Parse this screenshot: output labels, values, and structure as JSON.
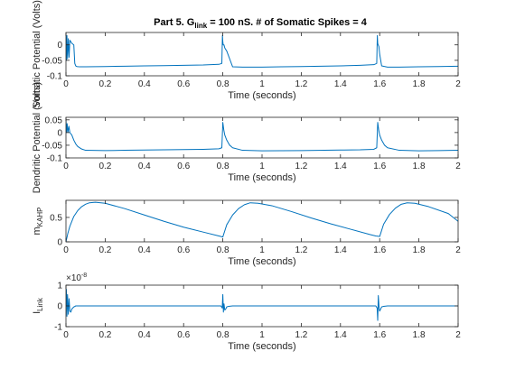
{
  "figure": {
    "title_main": "Part 5. G",
    "title_sub": "link",
    "title_rest": " = 100 nS. # of Somatic Spikes = 4"
  },
  "colors": {
    "trace": "#0072BD",
    "axis": "#262626"
  },
  "chart_data": [
    {
      "type": "line",
      "id": "somatic",
      "xlabel": "Time (seconds)",
      "ylabel": "Somatic Potential (Volts)",
      "xlim": [
        0,
        2
      ],
      "ylim": [
        -0.1,
        0.04
      ],
      "xticks": [
        0,
        0.2,
        0.4,
        0.6,
        0.8,
        1,
        1.2,
        1.4,
        1.6,
        1.8,
        2
      ],
      "xticklabels": [
        "0",
        "0.2",
        "0.4",
        "0.6",
        "0.8",
        "1",
        "1.2",
        "1.4",
        "1.6",
        "1.8",
        "2"
      ],
      "yticks": [
        -0.1,
        -0.05,
        0
      ],
      "yticklabels": [
        "-0.1",
        "-0.05",
        "0"
      ],
      "series": [
        {
          "x": [
            0,
            0.002,
            0.005,
            0.008,
            0.012,
            0.016,
            0.02,
            0.03,
            0.04,
            0.045,
            0.05,
            0.055,
            0.07,
            0.1,
            0.2,
            0.3,
            0.4,
            0.5,
            0.6,
            0.7,
            0.78,
            0.795,
            0.798,
            0.8,
            0.802,
            0.806,
            0.81,
            0.82,
            0.85,
            0.9,
            1.0,
            1.1,
            1.2,
            1.3,
            1.4,
            1.5,
            1.57,
            1.585,
            1.588,
            1.59,
            1.592,
            1.596,
            1.6,
            1.61,
            1.64,
            1.7,
            1.8,
            1.9,
            2.0
          ],
          "y": [
            0.035,
            -0.05,
            0.03,
            -0.045,
            0.02,
            -0.04,
            0.015,
            0.005,
            0.0,
            -0.06,
            -0.068,
            -0.07,
            -0.071,
            -0.071,
            -0.07,
            -0.069,
            -0.068,
            -0.067,
            -0.066,
            -0.065,
            -0.063,
            -0.06,
            0.03,
            0.01,
            0.0,
            0.0,
            -0.01,
            -0.02,
            -0.071,
            -0.072,
            -0.072,
            -0.071,
            -0.07,
            -0.069,
            -0.068,
            -0.066,
            -0.064,
            -0.06,
            0.03,
            0.005,
            0.0,
            -0.005,
            -0.03,
            -0.068,
            -0.072,
            -0.072,
            -0.071,
            -0.07,
            -0.069
          ]
        }
      ]
    },
    {
      "type": "line",
      "id": "dendritic",
      "xlabel": "Time (seconds)",
      "ylabel": "Dendritic Potential (Volts)",
      "xlim": [
        0,
        2
      ],
      "ylim": [
        -0.1,
        0.06
      ],
      "xticks": [
        0,
        0.2,
        0.4,
        0.6,
        0.8,
        1,
        1.2,
        1.4,
        1.6,
        1.8,
        2
      ],
      "xticklabels": [
        "0",
        "0.2",
        "0.4",
        "0.6",
        "0.8",
        "1",
        "1.2",
        "1.4",
        "1.6",
        "1.8",
        "2"
      ],
      "yticks": [
        -0.1,
        -0.05,
        0,
        0.05
      ],
      "yticklabels": [
        "-0.1",
        "-0.05",
        "0",
        "0.05"
      ],
      "series": [
        {
          "x": [
            0,
            0.003,
            0.006,
            0.01,
            0.015,
            0.02,
            0.03,
            0.04,
            0.05,
            0.06,
            0.08,
            0.1,
            0.2,
            0.3,
            0.4,
            0.5,
            0.6,
            0.7,
            0.78,
            0.795,
            0.8,
            0.805,
            0.81,
            0.82,
            0.835,
            0.85,
            0.9,
            1.0,
            1.2,
            1.4,
            1.5,
            1.57,
            1.585,
            1.59,
            1.595,
            1.6,
            1.61,
            1.625,
            1.64,
            1.7,
            1.8,
            1.9,
            2.0
          ],
          "y": [
            0.05,
            0.0,
            0.035,
            0.0,
            0.025,
            0.0,
            -0.01,
            -0.03,
            -0.045,
            -0.055,
            -0.065,
            -0.07,
            -0.071,
            -0.07,
            -0.069,
            -0.068,
            -0.067,
            -0.066,
            -0.064,
            -0.06,
            0.04,
            0.01,
            -0.01,
            -0.03,
            -0.05,
            -0.06,
            -0.07,
            -0.072,
            -0.071,
            -0.069,
            -0.068,
            -0.066,
            -0.06,
            0.04,
            0.01,
            -0.01,
            -0.03,
            -0.05,
            -0.06,
            -0.07,
            -0.072,
            -0.071,
            -0.07
          ]
        }
      ]
    },
    {
      "type": "line",
      "id": "mkahp",
      "xlabel": "Time (seconds)",
      "ylabel_main": "m",
      "ylabel_sub": "KAHP",
      "xlim": [
        0,
        2
      ],
      "ylim": [
        0,
        0.85
      ],
      "xticks": [
        0,
        0.2,
        0.4,
        0.6,
        0.8,
        1,
        1.2,
        1.4,
        1.6,
        1.8,
        2
      ],
      "xticklabels": [
        "0",
        "0.2",
        "0.4",
        "0.6",
        "0.8",
        "1",
        "1.2",
        "1.4",
        "1.6",
        "1.8",
        "2"
      ],
      "yticks": [
        0,
        0.5
      ],
      "yticklabels": [
        "0",
        "0.5"
      ],
      "series": [
        {
          "x": [
            0,
            0.01,
            0.02,
            0.04,
            0.06,
            0.08,
            0.1,
            0.12,
            0.15,
            0.2,
            0.3,
            0.4,
            0.5,
            0.6,
            0.7,
            0.78,
            0.8,
            0.82,
            0.85,
            0.88,
            0.91,
            0.94,
            0.98,
            1.05,
            1.15,
            1.25,
            1.35,
            1.45,
            1.55,
            1.58,
            1.6,
            1.62,
            1.65,
            1.68,
            1.71,
            1.74,
            1.78,
            1.85,
            1.95,
            2.0
          ],
          "y": [
            0.0,
            0.18,
            0.32,
            0.52,
            0.64,
            0.72,
            0.77,
            0.8,
            0.81,
            0.79,
            0.68,
            0.55,
            0.42,
            0.3,
            0.2,
            0.12,
            0.1,
            0.35,
            0.55,
            0.68,
            0.76,
            0.8,
            0.79,
            0.74,
            0.62,
            0.49,
            0.37,
            0.26,
            0.15,
            0.12,
            0.11,
            0.36,
            0.56,
            0.69,
            0.77,
            0.8,
            0.79,
            0.72,
            0.58,
            0.42
          ]
        }
      ]
    },
    {
      "type": "line",
      "id": "ilink",
      "xlabel": "Time (seconds)",
      "ylabel_main": "I",
      "ylabel_sub": "Link",
      "exponent_label": "×10",
      "exponent_power": "-8",
      "xlim": [
        0,
        2
      ],
      "ylim": [
        -1,
        1
      ],
      "xticks": [
        0,
        0.2,
        0.4,
        0.6,
        0.8,
        1,
        1.2,
        1.4,
        1.6,
        1.8,
        2
      ],
      "xticklabels": [
        "0",
        "0.2",
        "0.4",
        "0.6",
        "0.8",
        "1",
        "1.2",
        "1.4",
        "1.6",
        "1.8",
        "2"
      ],
      "yticks": [
        -1,
        0,
        1
      ],
      "yticklabels": [
        "-1",
        "0",
        "1"
      ],
      "series": [
        {
          "x": [
            0,
            0.002,
            0.005,
            0.008,
            0.012,
            0.016,
            0.02,
            0.025,
            0.03,
            0.04,
            0.05,
            0.1,
            0.3,
            0.5,
            0.7,
            0.79,
            0.797,
            0.8,
            0.803,
            0.806,
            0.81,
            0.815,
            0.82,
            0.83,
            0.85,
            1.0,
            1.2,
            1.4,
            1.58,
            1.587,
            1.59,
            1.593,
            1.597,
            1.6,
            1.605,
            1.61,
            1.62,
            1.64,
            1.8,
            2.0
          ],
          "y": [
            0.0,
            0.8,
            -0.5,
            0.55,
            -0.4,
            0.35,
            -0.25,
            -0.3,
            -0.15,
            -0.05,
            0.0,
            0.0,
            0.0,
            0.0,
            0.0,
            0.0,
            -0.1,
            0.55,
            -0.3,
            0.1,
            -0.2,
            -0.15,
            -0.05,
            -0.02,
            0.0,
            0.0,
            0.0,
            0.0,
            0.0,
            -0.1,
            -0.7,
            0.5,
            -0.1,
            -0.25,
            -0.15,
            -0.05,
            -0.02,
            0.0,
            0.0,
            0.0
          ]
        }
      ]
    }
  ]
}
